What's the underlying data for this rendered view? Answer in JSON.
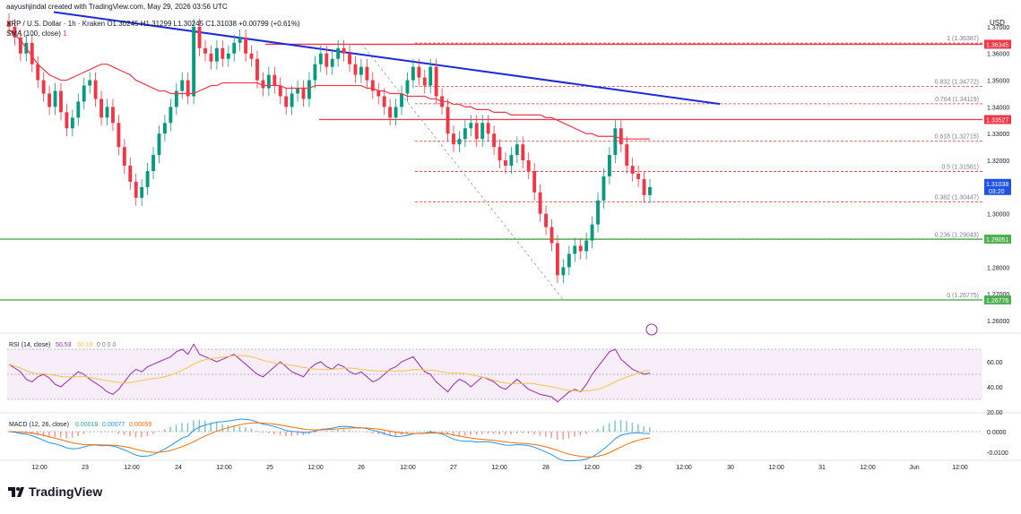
{
  "header": {
    "credit": "aayushjindal created with TradingView.com, May 29, 2026 03:56 UTC",
    "symbol_line": "XRP / U.S. Dollar · 1h · Kraken  O1.30245  H1.31299  L1.30245  C1.31038  +0.00799 (+0.61%)",
    "sma_label": "SMA (100, close)",
    "sma_value": "1"
  },
  "brand": {
    "name": "TradingView",
    "icon": "tradingview-logo-icon"
  },
  "axis": {
    "currency": "USD",
    "y_ticks": [
      "1.37000",
      "1.36000",
      "1.35000",
      "1.34000",
      "1.33000",
      "1.32000",
      "1.31000",
      "1.30000",
      "1.29000",
      "1.28000",
      "1.27000",
      "1.26000"
    ],
    "x_ticks": [
      "12:00",
      "23",
      "12:00",
      "24",
      "12:00",
      "25",
      "12:00",
      "26",
      "12:00",
      "27",
      "12:00",
      "28",
      "12:00",
      "29",
      "12:00",
      "30",
      "12:00",
      "31",
      "12:00",
      "Jun",
      "12:00"
    ]
  },
  "price_tags": {
    "resistance_top": "1.36345",
    "resistance_mid": "1.33527",
    "current": "1.31038",
    "countdown": "03:20",
    "support_mid": "1.29051",
    "support_low": "1.26776"
  },
  "colors": {
    "up": "#089981",
    "down": "#f23645",
    "sma": "#f23645",
    "trendline": "#1b2bd6",
    "support": "#4caf50",
    "resistance": "#f23645",
    "fib": "#e53935",
    "rsi": "#9c27b0",
    "rsi_ma": "#f7c548",
    "macd": "#2196f3",
    "signal": "#ff6d00"
  },
  "fib_levels": [
    {
      "label": "1 (1.36387)",
      "price": 1.36387
    },
    {
      "label": "0.832 (1.34772)",
      "price": 1.34772
    },
    {
      "label": "0.764 (1.34119)",
      "price": 1.34119
    },
    {
      "label": "0.618 (1.32715)",
      "price": 1.32715
    },
    {
      "label": "0.5 (1.31581)",
      "price": 1.31581
    },
    {
      "label": "0.382 (1.30447)",
      "price": 1.30447
    },
    {
      "label": "0.236 (1.29043)",
      "price": 1.29043
    },
    {
      "label": "0 (1.26775)",
      "price": 1.26775
    }
  ],
  "rsi": {
    "label": "RSI (14, close)",
    "value": "50.53",
    "ma_value": "50.18",
    "extras": "0  0  0  0",
    "ticks": [
      "60.00",
      "40.00",
      "20.00"
    ]
  },
  "macd": {
    "label": "MACD (12, 26, close)",
    "hist": "0.00018",
    "macd": "0.00077",
    "signal": "0.00059",
    "ticks": [
      "0.0000",
      "-0.0100"
    ]
  },
  "chart_data": {
    "type": "candlestick",
    "symbol": "XRP / U.S. Dollar",
    "interval": "1h",
    "exchange": "Kraken",
    "ohlc_last": {
      "open": 1.30245,
      "high": 1.31299,
      "low": 1.30245,
      "close": 1.31038,
      "change": 0.00799,
      "change_pct": 0.61
    },
    "ylim": [
      1.256,
      1.375
    ],
    "close": [
      1.37,
      1.366,
      1.36,
      1.364,
      1.356,
      1.35,
      1.345,
      1.34,
      1.346,
      1.338,
      1.332,
      1.336,
      1.342,
      1.348,
      1.35,
      1.343,
      1.336,
      1.34,
      1.334,
      1.325,
      1.318,
      1.312,
      1.306,
      1.31,
      1.316,
      1.322,
      1.33,
      1.334,
      1.34,
      1.346,
      1.35,
      1.344,
      1.37,
      1.362,
      1.36,
      1.357,
      1.362,
      1.358,
      1.36,
      1.364,
      1.366,
      1.36,
      1.358,
      1.35,
      1.347,
      1.352,
      1.348,
      1.344,
      1.34,
      1.345,
      1.347,
      1.343,
      1.35,
      1.356,
      1.36,
      1.355,
      1.358,
      1.362,
      1.36,
      1.356,
      1.352,
      1.355,
      1.35,
      1.346,
      1.344,
      1.34,
      1.336,
      1.34,
      1.345,
      1.35,
      1.355,
      1.351,
      1.348,
      1.355,
      1.344,
      1.34,
      1.33,
      1.326,
      1.328,
      1.332,
      1.334,
      1.328,
      1.334,
      1.33,
      1.325,
      1.32,
      1.318,
      1.322,
      1.326,
      1.32,
      1.316,
      1.308,
      1.3,
      1.295,
      1.289,
      1.277,
      1.28,
      1.285,
      1.288,
      1.286,
      1.29,
      1.296,
      1.305,
      1.314,
      1.322,
      1.332,
      1.326,
      1.318,
      1.315,
      1.313,
      1.307,
      1.31
    ],
    "sma100": [
      1.369,
      1.367,
      1.365,
      1.362,
      1.359,
      1.356,
      1.354,
      1.352,
      1.351,
      1.35,
      1.35,
      1.351,
      1.352,
      1.353,
      1.354,
      1.355,
      1.356,
      1.356,
      1.355,
      1.354,
      1.353,
      1.352,
      1.35,
      1.349,
      1.348,
      1.347,
      1.346,
      1.346,
      1.345,
      1.345,
      1.345,
      1.345,
      1.345,
      1.346,
      1.347,
      1.348,
      1.348,
      1.349,
      1.349,
      1.349,
      1.349,
      1.349,
      1.349,
      1.349,
      1.348,
      1.348,
      1.348,
      1.348,
      1.347,
      1.347,
      1.347,
      1.347,
      1.347,
      1.348,
      1.348,
      1.348,
      1.348,
      1.348,
      1.348,
      1.348,
      1.348,
      1.348,
      1.347,
      1.347,
      1.346,
      1.346,
      1.345,
      1.345,
      1.345,
      1.344,
      1.344,
      1.344,
      1.344,
      1.343,
      1.343,
      1.342,
      1.342,
      1.341,
      1.341,
      1.34,
      1.34,
      1.339,
      1.339,
      1.339,
      1.338,
      1.338,
      1.338,
      1.337,
      1.337,
      1.337,
      1.337,
      1.337,
      1.337,
      1.336,
      1.336,
      1.335,
      1.334,
      1.333,
      1.332,
      1.331,
      1.33,
      1.33,
      1.329,
      1.329,
      1.329,
      1.329,
      1.328,
      1.328,
      1.328,
      1.328,
      1.328,
      1.328
    ],
    "horizontal_levels": [
      {
        "name": "resistance",
        "value": 1.36345
      },
      {
        "name": "resistance",
        "value": 1.33527
      },
      {
        "name": "support",
        "value": 1.29051
      },
      {
        "name": "support",
        "value": 1.26776
      }
    ],
    "trendline": {
      "start": 1.3755,
      "end": 1.3411
    },
    "rsi_series": [
      58,
      55,
      52,
      46,
      44,
      48,
      50,
      47,
      42,
      40,
      44,
      48,
      52,
      50,
      46,
      43,
      40,
      36,
      34,
      38,
      44,
      50,
      54,
      52,
      56,
      58,
      60,
      62,
      64,
      68,
      70,
      66,
      74,
      66,
      64,
      62,
      60,
      62,
      64,
      66,
      62,
      58,
      54,
      50,
      48,
      52,
      56,
      60,
      56,
      52,
      50,
      48,
      54,
      58,
      60,
      56,
      54,
      58,
      56,
      52,
      50,
      52,
      48,
      44,
      46,
      50,
      54,
      56,
      60,
      62,
      64,
      58,
      52,
      50,
      44,
      40,
      36,
      42,
      46,
      44,
      40,
      44,
      48,
      46,
      44,
      40,
      38,
      42,
      46,
      42,
      38,
      36,
      34,
      33,
      32,
      28,
      32,
      36,
      38,
      36,
      42,
      50,
      56,
      62,
      68,
      70,
      62,
      58,
      54,
      52,
      50,
      51
    ]
  }
}
